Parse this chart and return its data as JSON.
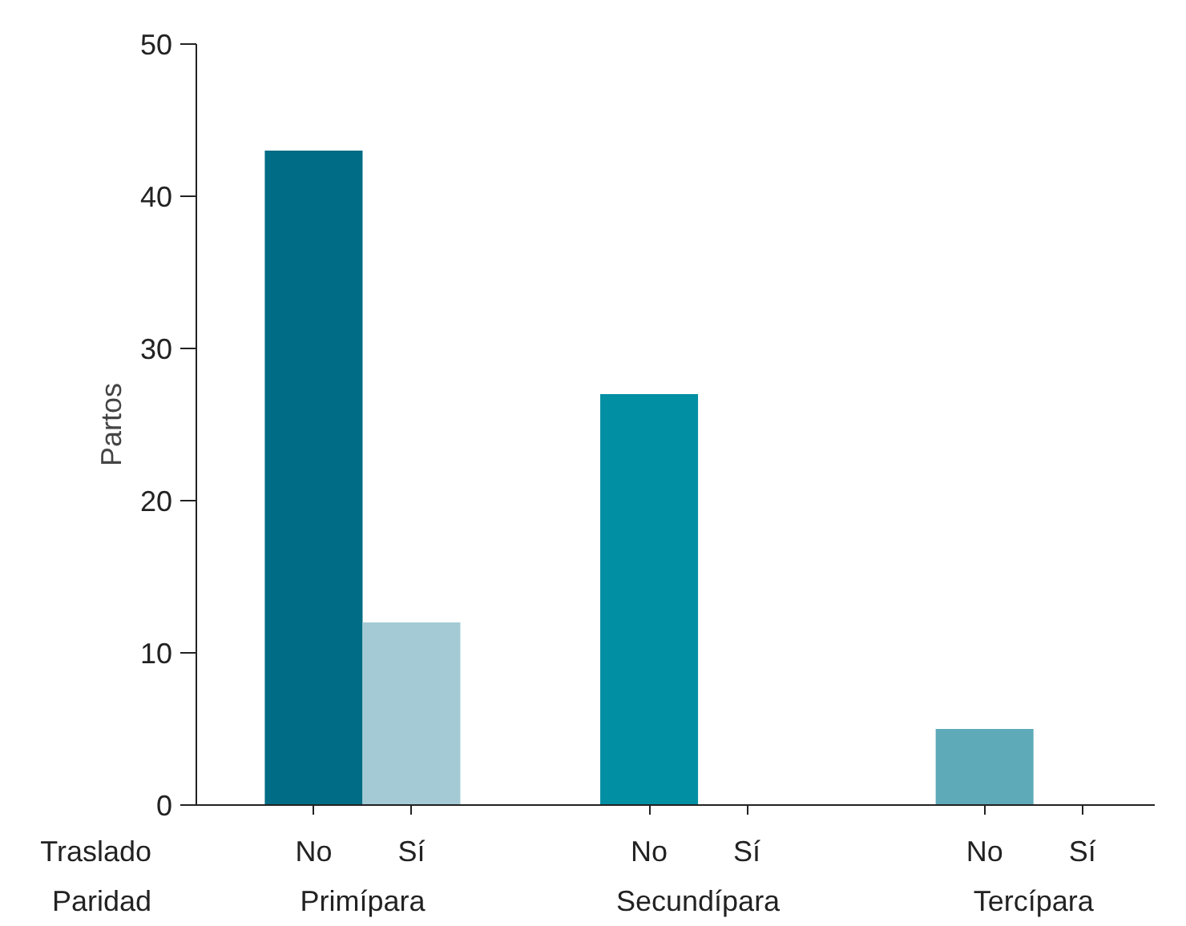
{
  "chart_data": {
    "type": "bar",
    "ylabel": "Partos",
    "categories": [
      "No",
      "Sí",
      "No",
      "Sí",
      "No",
      "Sí"
    ],
    "values": [
      43,
      12,
      27,
      0,
      5,
      0
    ],
    "colors": [
      "#006c85",
      "#a4cbd5",
      "#008fa3",
      "#a4cbd5",
      "#5eaab9",
      "#a4cbd5"
    ],
    "ylim": [
      0,
      50
    ],
    "yticks": [
      0,
      10,
      20,
      30,
      40,
      50
    ],
    "grid": false,
    "annotations": [
      "Traslado",
      "Paridad",
      "Primípara",
      "Secundípara",
      "Tercípara"
    ]
  }
}
